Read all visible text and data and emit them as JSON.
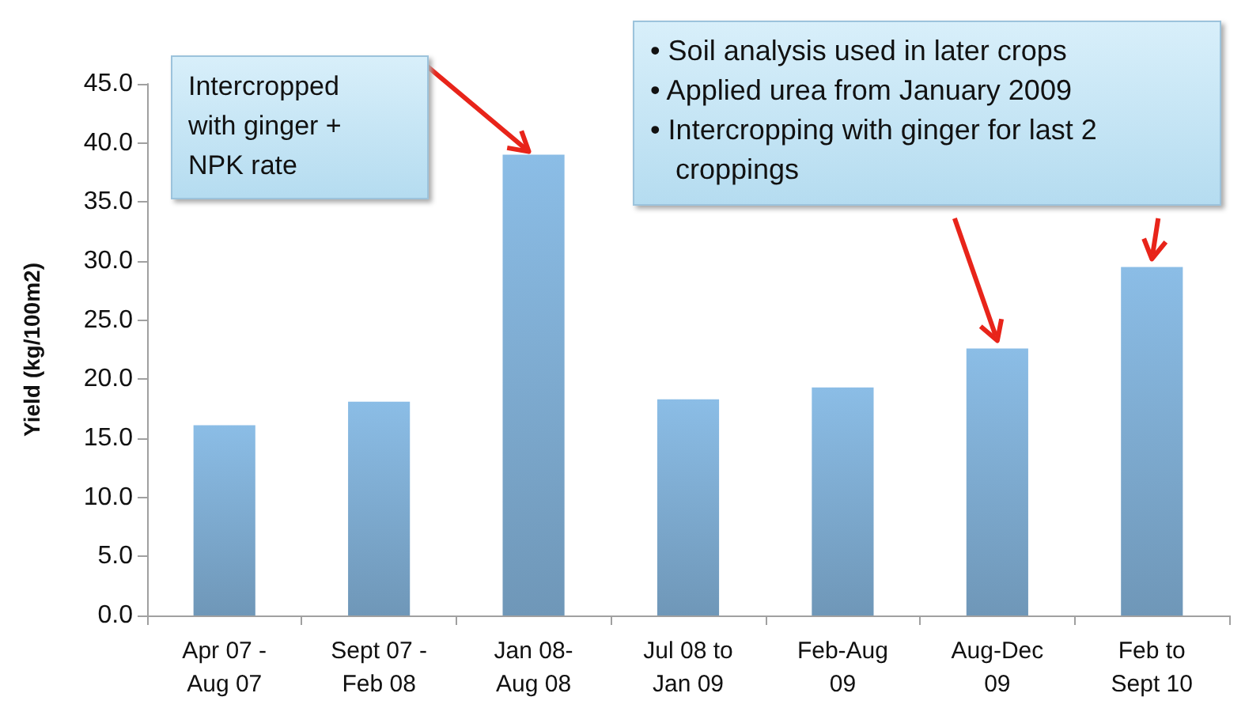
{
  "chart_data": {
    "type": "bar",
    "ylabel": "Yield (kg/100m2)",
    "categories": [
      "Apr 07 -\nAug 07",
      "Sept 07 -\nFeb 08",
      "Jan 08-\nAug 08",
      "Jul 08 to\nJan 09",
      "Feb-Aug\n09",
      "Aug-Dec\n09",
      "Feb to\nSept 10"
    ],
    "values": [
      16.1,
      18.1,
      39.0,
      18.3,
      19.3,
      22.6,
      29.5
    ],
    "color": "#8bbde6",
    "ylim": [
      0,
      45
    ],
    "yticks": [
      {
        "value": 0,
        "label": "0.0"
      },
      {
        "value": 5,
        "label": "5.0"
      },
      {
        "value": 10,
        "label": "10.0"
      },
      {
        "value": 15,
        "label": "15.0"
      },
      {
        "value": 20,
        "label": "20.0"
      },
      {
        "value": 25,
        "label": "25.0"
      },
      {
        "value": 30,
        "label": "30.0"
      },
      {
        "value": 35,
        "label": "35.0"
      },
      {
        "value": 40,
        "label": "40.0"
      },
      {
        "value": 45,
        "label": "45.0"
      }
    ],
    "grid": false,
    "annotations": [
      "Intercropped\nwith ginger +\nNPK rate",
      "• Soil analysis used in later crops\n• Applied urea from January 2009\n• Intercropping with ginger for last 2 croppings"
    ]
  }
}
